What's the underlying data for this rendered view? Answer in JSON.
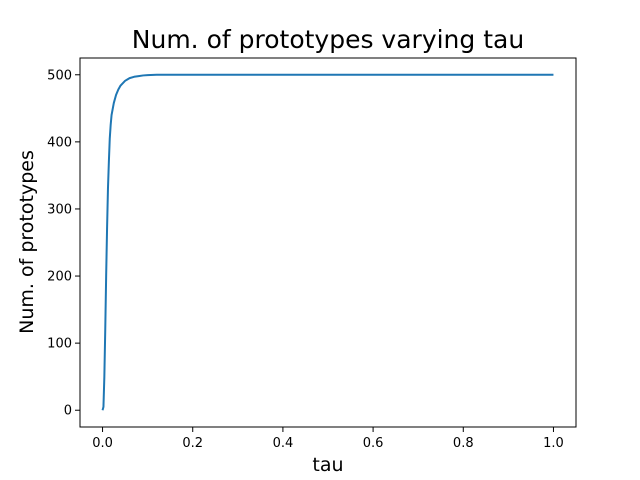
{
  "chart_data": {
    "type": "line",
    "title": "Num. of prototypes varying tau",
    "xlabel": "tau",
    "ylabel": "Num. of prototypes",
    "xlim": [
      -0.05,
      1.05
    ],
    "ylim": [
      -25,
      525
    ],
    "xticks": [
      0.0,
      0.2,
      0.4,
      0.6,
      0.8,
      1.0
    ],
    "xtick_labels": [
      "0.0",
      "0.2",
      "0.4",
      "0.6",
      "0.8",
      "1.0"
    ],
    "yticks": [
      0,
      100,
      200,
      300,
      400,
      500
    ],
    "ytick_labels": [
      "0",
      "100",
      "200",
      "300",
      "400",
      "500"
    ],
    "grid": false,
    "series": [
      {
        "color": "#1f77b4",
        "x": [
          0.0,
          0.002,
          0.004,
          0.006,
          0.008,
          0.01,
          0.012,
          0.014,
          0.016,
          0.018,
          0.02,
          0.025,
          0.03,
          0.035,
          0.04,
          0.05,
          0.06,
          0.07,
          0.08,
          0.09,
          0.1,
          0.12,
          0.15,
          0.2,
          0.3,
          0.4,
          0.5,
          0.6,
          0.7,
          0.8,
          0.9,
          1.0
        ],
        "y": [
          0,
          5,
          50,
          120,
          200,
          270,
          330,
          370,
          405,
          425,
          440,
          458,
          470,
          478,
          484,
          491,
          495,
          497,
          498,
          499,
          499.5,
          500,
          500,
          500,
          500,
          500,
          500,
          500,
          500,
          500,
          500,
          500
        ]
      }
    ]
  }
}
